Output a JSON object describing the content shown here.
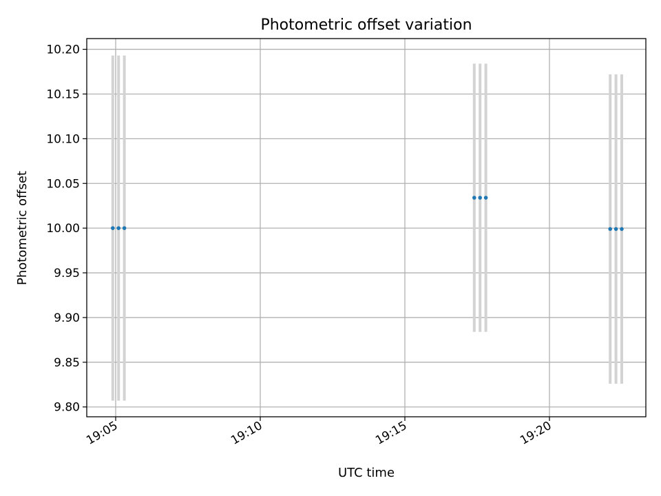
{
  "chart_data": {
    "type": "scatter",
    "title": "Photometric offset variation",
    "xlabel": "UTC time",
    "ylabel": "Photometric offset",
    "xlim": [
      "19:04:00",
      "19:23:20"
    ],
    "ylim": [
      9.789,
      10.212
    ],
    "grid": true,
    "x_ticks": [
      "19:05",
      "19:10",
      "19:15",
      "19:20"
    ],
    "y_ticks": [
      "9.80",
      "9.85",
      "9.90",
      "9.95",
      "10.00",
      "10.05",
      "10.10",
      "10.15",
      "10.20"
    ],
    "point_color": "#1f77b4",
    "errorbar_color": "#d3d3d3",
    "points": [
      {
        "x": "19:04:54",
        "y": 10.0,
        "err": 0.193
      },
      {
        "x": "19:05:06",
        "y": 10.0,
        "err": 0.193
      },
      {
        "x": "19:05:18",
        "y": 10.0,
        "err": 0.193
      },
      {
        "x": "19:17:24",
        "y": 10.034,
        "err": 0.15
      },
      {
        "x": "19:17:36",
        "y": 10.034,
        "err": 0.15
      },
      {
        "x": "19:17:48",
        "y": 10.034,
        "err": 0.15
      },
      {
        "x": "19:22:06",
        "y": 9.999,
        "err": 0.173
      },
      {
        "x": "19:22:18",
        "y": 9.999,
        "err": 0.173
      },
      {
        "x": "19:22:30",
        "y": 9.999,
        "err": 0.173
      }
    ]
  }
}
